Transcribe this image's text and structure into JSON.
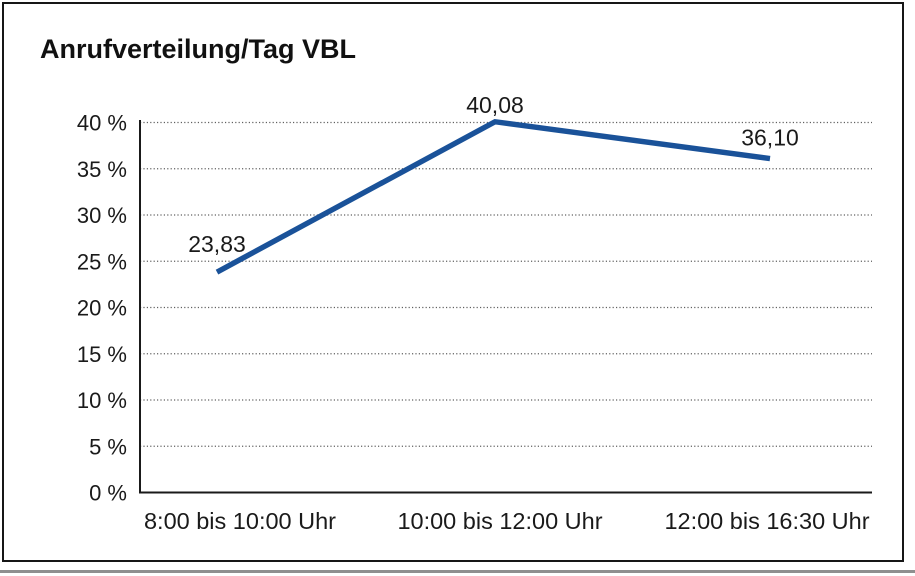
{
  "page": {
    "title": "Anrufverteilung/Tag VBL"
  },
  "chart_data": {
    "type": "line",
    "title": "Anrufverteilung/Tag VBL",
    "categories": [
      "8:00 bis 10:00 Uhr",
      "10:00 bis 12:00 Uhr",
      "12:00 bis 16:30 Uhr"
    ],
    "values": [
      23.83,
      40.08,
      36.1
    ],
    "data_labels": [
      "23,83",
      "40,08",
      "36,10"
    ],
    "yticks": [
      0,
      5,
      10,
      15,
      20,
      25,
      30,
      35,
      40
    ],
    "ytick_labels": [
      "0 %",
      "5 %",
      "10 %",
      "15 %",
      "20 %",
      "25 %",
      "30 %",
      "35 %",
      "40 %"
    ],
    "ylim": [
      0,
      40
    ],
    "xlabel": "",
    "ylabel": "",
    "legend": "none",
    "grid": "horizontal-dotted",
    "colors": {
      "line": "#1A5299",
      "axis": "#1a1a1a",
      "grid": "#606060",
      "text": "#1a1a1a",
      "frame": "#161616",
      "background": "#ffffff"
    }
  }
}
